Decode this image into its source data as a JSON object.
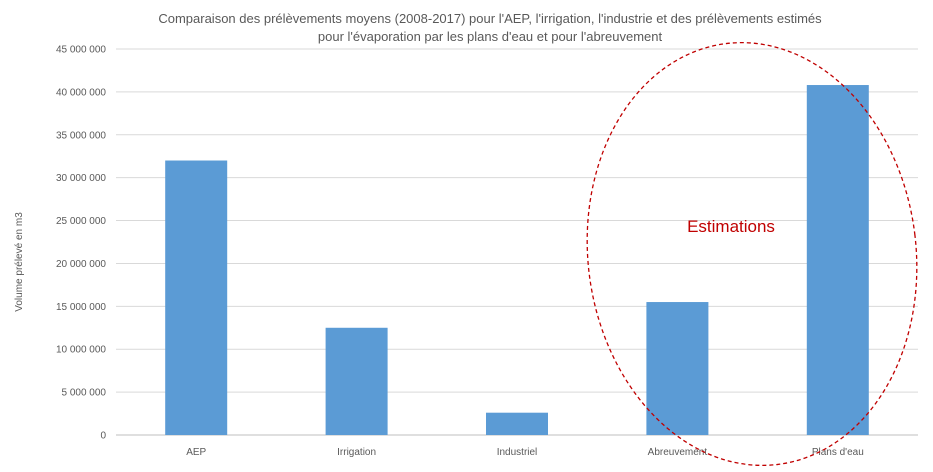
{
  "chart_data": {
    "type": "bar",
    "title_lines": [
      "Comparaison des prélèvements moyens (2008-2017) pour l'AEP, l'irrigation, l'industrie et des prélèvements estimés",
      "pour l'évaporation par les plans d'eau et pour l'abreuvement"
    ],
    "ylabel": "Volume prélevé en m3",
    "xlabel": "",
    "categories": [
      "AEP",
      "Irrigation",
      "Industriel",
      "Abreuvement",
      "Plans d'eau"
    ],
    "values": [
      32000000,
      12500000,
      2600000,
      15500000,
      40800000
    ],
    "ylim": [
      0,
      45000000
    ],
    "yticks": [
      0,
      5000000,
      10000000,
      15000000,
      20000000,
      25000000,
      30000000,
      35000000,
      40000000,
      45000000
    ],
    "ytick_labels": [
      "0",
      "5 000 000",
      "10 000 000",
      "15 000 000",
      "20 000 000",
      "25 000 000",
      "30 000 000",
      "35 000 000",
      "40 000 000",
      "45 000 000"
    ],
    "grid": true,
    "legend": "none",
    "bar_color": "#5b9bd5",
    "annotation": {
      "text": "Estimations",
      "color": "#c00000",
      "style": "dashed ellipse around the last two bars"
    }
  }
}
